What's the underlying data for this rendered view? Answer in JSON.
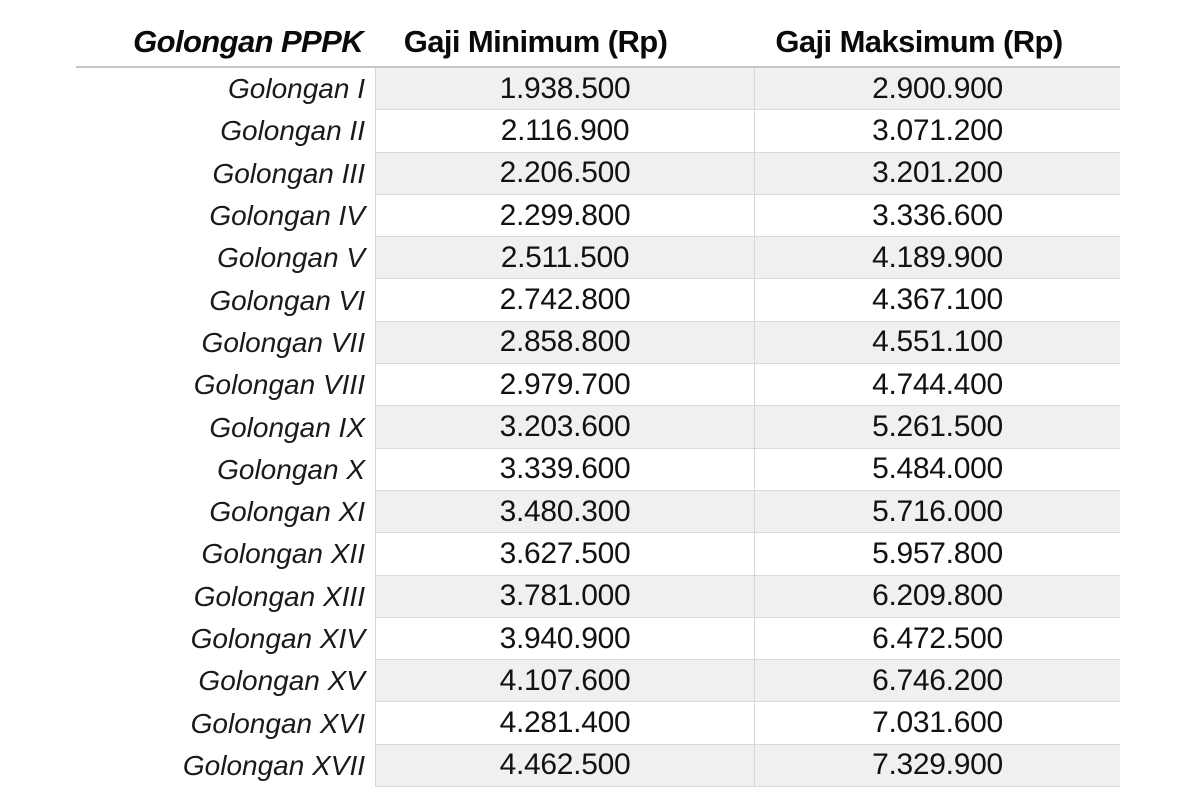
{
  "table": {
    "headers": {
      "golongan": "Golongan PPPK",
      "gaji_minimum": "Gaji Minimum (Rp)",
      "gaji_maksimum": "Gaji Maksimum (Rp)"
    },
    "rows": [
      {
        "golongan": "Golongan I",
        "min": "1.938.500",
        "max": "2.900.900"
      },
      {
        "golongan": "Golongan II",
        "min": "2.116.900",
        "max": "3.071.200"
      },
      {
        "golongan": "Golongan III",
        "min": "2.206.500",
        "max": "3.201.200"
      },
      {
        "golongan": "Golongan IV",
        "min": "2.299.800",
        "max": "3.336.600"
      },
      {
        "golongan": "Golongan V",
        "min": "2.511.500",
        "max": "4.189.900"
      },
      {
        "golongan": "Golongan VI",
        "min": "2.742.800",
        "max": "4.367.100"
      },
      {
        "golongan": "Golongan VII",
        "min": "2.858.800",
        "max": "4.551.100"
      },
      {
        "golongan": "Golongan VIII",
        "min": "2.979.700",
        "max": "4.744.400"
      },
      {
        "golongan": "Golongan IX",
        "min": "3.203.600",
        "max": "5.261.500"
      },
      {
        "golongan": "Golongan X",
        "min": "3.339.600",
        "max": "5.484.000"
      },
      {
        "golongan": "Golongan XI",
        "min": "3.480.300",
        "max": "5.716.000"
      },
      {
        "golongan": "Golongan XII",
        "min": "3.627.500",
        "max": "5.957.800"
      },
      {
        "golongan": "Golongan XIII",
        "min": "3.781.000",
        "max": "6.209.800"
      },
      {
        "golongan": "Golongan XIV",
        "min": "3.940.900",
        "max": "6.472.500"
      },
      {
        "golongan": "Golongan XV",
        "min": "4.107.600",
        "max": "6.746.200"
      },
      {
        "golongan": "Golongan XVI",
        "min": "4.281.400",
        "max": "7.031.600"
      },
      {
        "golongan": "Golongan XVII",
        "min": "4.462.500",
        "max": "7.329.900"
      }
    ]
  },
  "chart_data": {
    "type": "table",
    "title": "",
    "columns": [
      "Golongan PPPK",
      "Gaji Minimum (Rp)",
      "Gaji Maksimum (Rp)"
    ],
    "categories": [
      "Golongan I",
      "Golongan II",
      "Golongan III",
      "Golongan IV",
      "Golongan V",
      "Golongan VI",
      "Golongan VII",
      "Golongan VIII",
      "Golongan IX",
      "Golongan X",
      "Golongan XI",
      "Golongan XII",
      "Golongan XIII",
      "Golongan XIV",
      "Golongan XV",
      "Golongan XVI",
      "Golongan XVII"
    ],
    "series": [
      {
        "name": "Gaji Minimum (Rp)",
        "values": [
          1938500,
          2116900,
          2206500,
          2299800,
          2511500,
          2742800,
          2858800,
          2979700,
          3203600,
          3339600,
          3480300,
          3627500,
          3781000,
          3940900,
          4107600,
          4281400,
          4462500
        ]
      },
      {
        "name": "Gaji Maksimum (Rp)",
        "values": [
          2900900,
          3071200,
          3201200,
          3336600,
          4189900,
          4367100,
          4551100,
          4744400,
          5261500,
          5484000,
          5716000,
          5957800,
          6209800,
          6472500,
          6746200,
          7031600,
          7329900
        ]
      }
    ],
    "layout": {
      "striped_rows": true,
      "stripe_on": "odd rows (I, III, V, ...)",
      "value_alignment": "center",
      "label_alignment": "right"
    }
  },
  "colors": {
    "background": "#ffffff",
    "row_shade": "#f0f0ef",
    "cell_border": "#d6d6d6",
    "header_underline": "#c6c6c6",
    "text": "#121212"
  }
}
